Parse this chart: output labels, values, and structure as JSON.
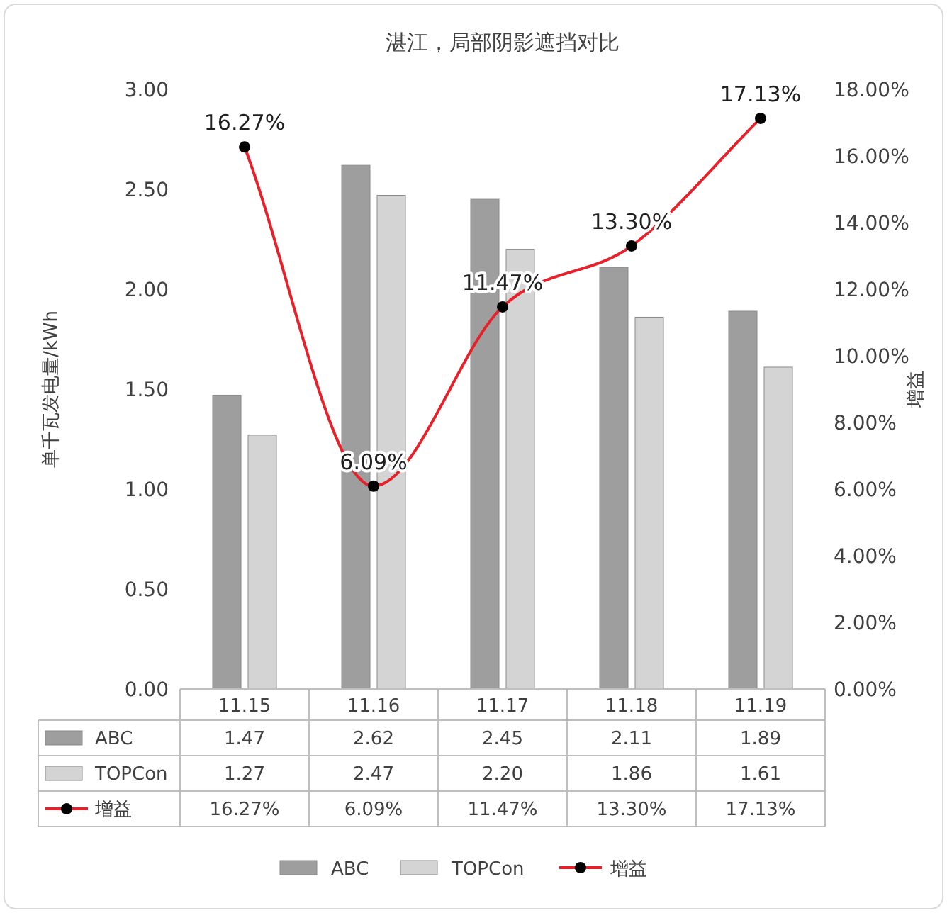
{
  "chart_data": {
    "type": "bar",
    "title": "湛江，局部阴影遮挡对比",
    "ylabel": "单千瓦发电量/kWh",
    "y2label": "增益",
    "categories": [
      "11.15",
      "11.16",
      "11.17",
      "11.18",
      "11.19"
    ],
    "series": [
      {
        "name": "ABC",
        "color": "#9e9e9e",
        "values": [
          1.47,
          2.62,
          2.45,
          2.11,
          1.89
        ],
        "value_labels": [
          "1.47",
          "2.62",
          "2.45",
          "2.11",
          "1.89"
        ]
      },
      {
        "name": "TOPCon",
        "color": "#d4d4d4",
        "values": [
          1.27,
          2.47,
          2.2,
          1.86,
          1.61
        ],
        "value_labels": [
          "1.27",
          "2.47",
          "2.20",
          "1.86",
          "1.61"
        ]
      },
      {
        "name": "增益",
        "type": "line",
        "axis": "y2",
        "color": "#e8202a",
        "marker": "circle",
        "values": [
          16.27,
          6.09,
          11.47,
          13.3,
          17.13
        ],
        "value_labels": [
          "16.27%",
          "6.09%",
          "11.47%",
          "13.30%",
          "17.13%"
        ]
      }
    ],
    "ylim": [
      0,
      3
    ],
    "yticks": [
      {
        "value": 0,
        "label": "0.00"
      },
      {
        "value": 0.5,
        "label": "0.50"
      },
      {
        "value": 1,
        "label": "1.00"
      },
      {
        "value": 1.5,
        "label": "1.50"
      },
      {
        "value": 2,
        "label": "2.00"
      },
      {
        "value": 2.5,
        "label": "2.50"
      },
      {
        "value": 3,
        "label": "3.00"
      }
    ],
    "y2lim": [
      0,
      18
    ],
    "y2ticks": [
      {
        "value": 0,
        "label": "0.00%"
      },
      {
        "value": 2,
        "label": "2.00%"
      },
      {
        "value": 4,
        "label": "4.00%"
      },
      {
        "value": 6,
        "label": "6.00%"
      },
      {
        "value": 8,
        "label": "8.00%"
      },
      {
        "value": 10,
        "label": "10.00%"
      },
      {
        "value": 12,
        "label": "12.00%"
      },
      {
        "value": 14,
        "label": "14.00%"
      },
      {
        "value": 16,
        "label": "16.00%"
      },
      {
        "value": 18,
        "label": "18.00%"
      }
    ],
    "legend": "bottom"
  }
}
